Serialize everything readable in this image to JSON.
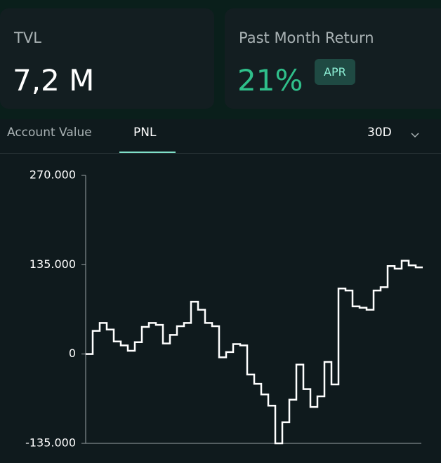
{
  "cards": [
    {
      "label": "TVL",
      "value": "7,2 M"
    },
    {
      "label": "Past Month Return",
      "value": "21%",
      "badge": "APR"
    }
  ],
  "tabs": [
    "Account Value",
    "PNL"
  ],
  "range": "30D",
  "chart_data": {
    "type": "line",
    "step": true,
    "color": "#ffffff",
    "values": [
      0,
      35000,
      47000,
      37000,
      19000,
      13000,
      5000,
      18000,
      41000,
      47000,
      44000,
      16000,
      29000,
      42000,
      47000,
      79000,
      67000,
      47000,
      42000,
      -5000,
      3000,
      15000,
      13000,
      -31000,
      -45000,
      -61000,
      -78000,
      -135000,
      -103000,
      -69000,
      -16000,
      -53000,
      -80000,
      -64000,
      -12000,
      -46000,
      99000,
      96000,
      72000,
      70000,
      67000,
      96000,
      101000,
      133000,
      129000,
      141000,
      134000,
      131000
    ],
    "ylim": [
      -135000,
      270000
    ],
    "yticks": [
      {
        "value": -135000,
        "label": "-135.000"
      },
      0,
      {
        "value": 135000,
        "label": "135.000"
      },
      {
        "value": 270000,
        "label": "270.000"
      }
    ]
  }
}
